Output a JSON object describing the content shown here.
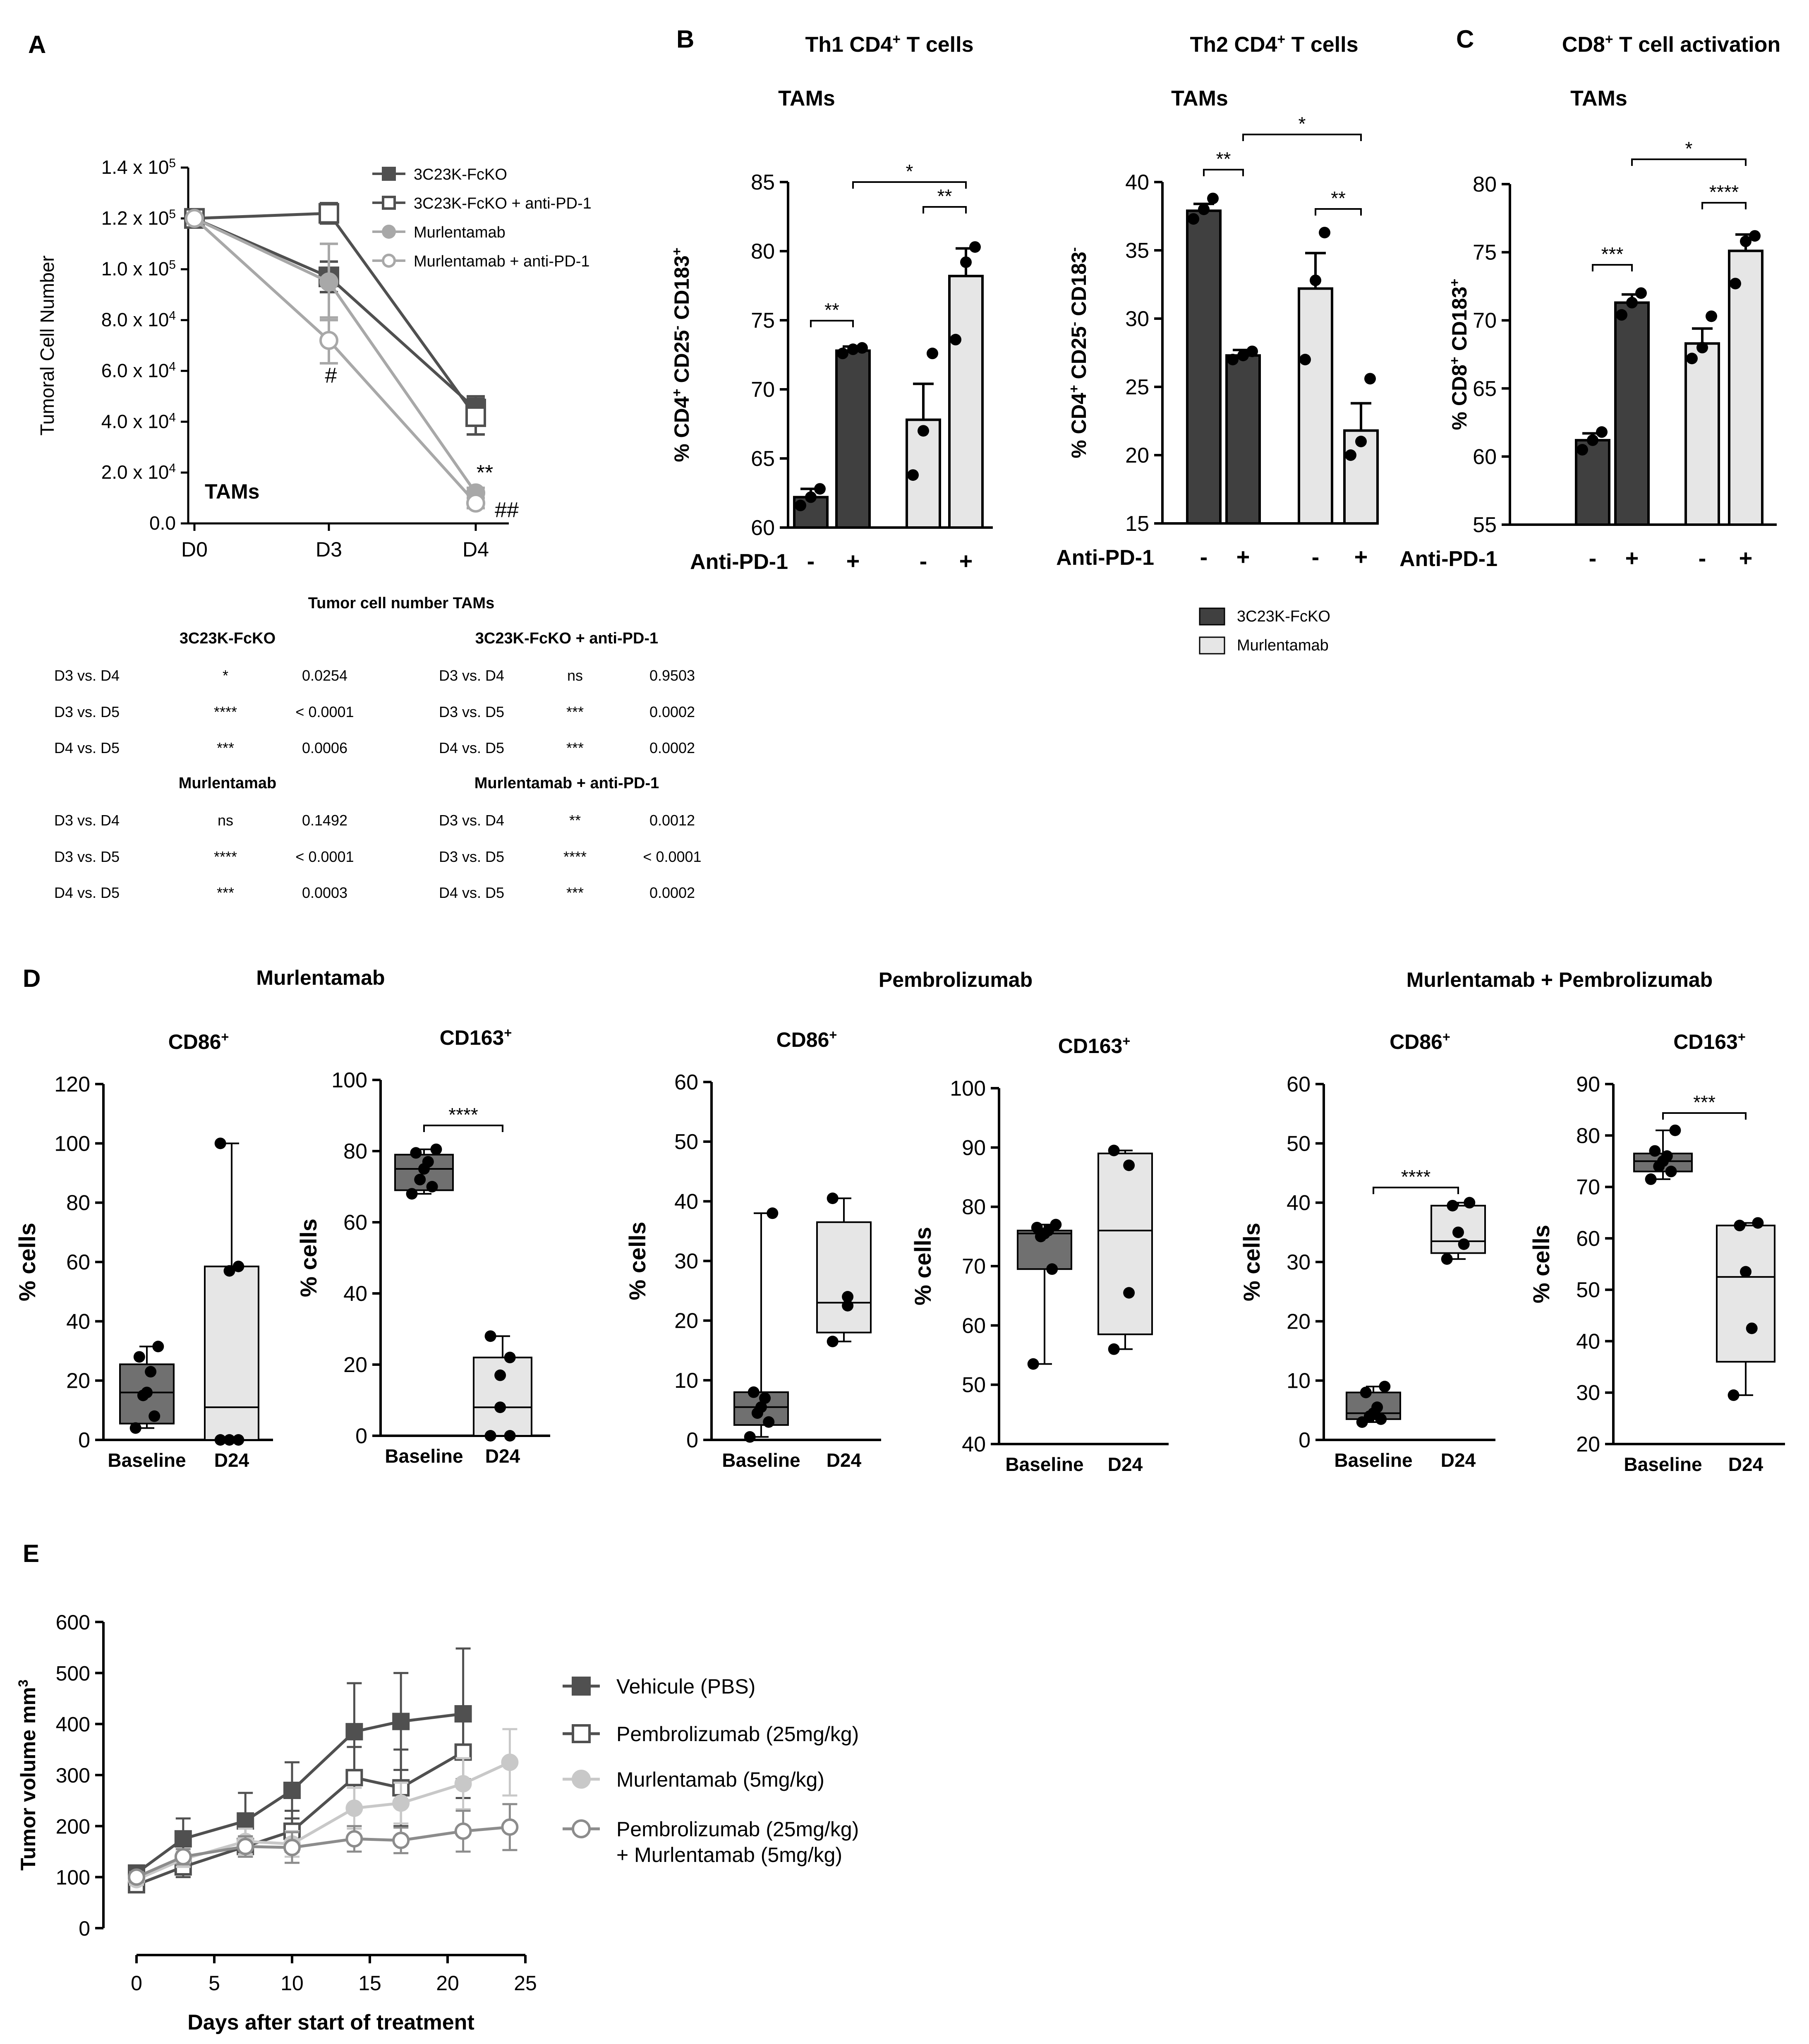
{
  "colors": {
    "dark": "#404040",
    "mid": "#707070",
    "light": "#e6e6e6",
    "grey1": "#8c8c8c",
    "grey2": "#a8a8a8",
    "grey3": "#c8c8c8"
  },
  "panel_labels": {
    "A": "A",
    "B": "B",
    "C": "C",
    "D": "D",
    "E": "E"
  },
  "chart_data": [
    {
      "id": "A",
      "type": "line",
      "ylabel": "Tumoral Cell Number",
      "annotation": "TAMs",
      "categories": [
        "D0",
        "D3",
        "D4"
      ],
      "ytick_labels": [
        "0.0",
        "2.0 x 10",
        "4.0 x 10",
        "6.0 x 10",
        "8.0 x 10",
        "1.0 x 10",
        "1.2 x 10",
        "1.4 x 10"
      ],
      "ytick_exps": [
        "",
        "4",
        "4",
        "4",
        "4",
        "5",
        "5",
        "5"
      ],
      "ylim": [
        0,
        140000
      ],
      "series": [
        {
          "name": "3C23K-FcKO",
          "values": [
            120000,
            97000,
            45000
          ],
          "err": [
            0,
            6000,
            5000
          ],
          "marker": "square-filled",
          "color": "#505050"
        },
        {
          "name": "3C23K-FcKO + anti-PD-1",
          "values": [
            120000,
            122000,
            42000
          ],
          "err": [
            0,
            4000,
            7000
          ],
          "marker": "square-open",
          "color": "#505050"
        },
        {
          "name": "Murlentamab",
          "values": [
            120000,
            95000,
            12000
          ],
          "err": [
            0,
            15000,
            2000
          ],
          "marker": "circle-filled",
          "color": "#a8a8a8"
        },
        {
          "name": "Murlentamab + anti-PD-1",
          "values": [
            120000,
            72000,
            8000
          ],
          "err": [
            0,
            9000,
            2000
          ],
          "marker": "circle-open",
          "color": "#a8a8a8"
        }
      ],
      "sig": {
        "d3": "#",
        "d4a": "**",
        "d4b": "##"
      }
    },
    {
      "id": "B1",
      "type": "bar",
      "title": "Th1 CD4",
      "title_sup": "+",
      "title_rest": " T cells",
      "subtitle": "TAMs",
      "ylabel_parts": [
        "% CD4",
        "+",
        " CD25",
        "-",
        " CD183",
        "+"
      ],
      "xlabel": "Anti-PD-1",
      "ticks": [
        "-",
        "+",
        "-",
        "+"
      ],
      "ylim": [
        60,
        85
      ],
      "yticks": [
        "60",
        "65",
        "70",
        "75",
        "80",
        "85"
      ],
      "values": [
        62.2,
        72.8,
        67.8,
        78.2
      ],
      "err": [
        0.6,
        0.3,
        2.6,
        2.0
      ],
      "points": [
        [
          61.6,
          62.2,
          62.8
        ],
        [
          72.6,
          72.9,
          73.0
        ],
        [
          63.8,
          67.0,
          72.6
        ],
        [
          73.6,
          79.2,
          80.3
        ]
      ],
      "sig": [
        {
          "a": 0,
          "b": 1,
          "label": "**"
        },
        {
          "a": 2,
          "b": 3,
          "label": "**"
        },
        {
          "a": 1,
          "b": 3,
          "label": "*"
        }
      ]
    },
    {
      "id": "B2",
      "type": "bar",
      "title": "Th2 CD4",
      "title_sup": "+",
      "title_rest": " T cells",
      "subtitle": "TAMs",
      "ylabel_parts": [
        "% CD4",
        "+",
        " CD25",
        "-",
        " CD183",
        "-"
      ],
      "xlabel": "Anti-PD-1",
      "ticks": [
        "-",
        "+",
        "-",
        "+"
      ],
      "ylim": [
        15,
        40
      ],
      "yticks": [
        "15",
        "20",
        "25",
        "30",
        "35",
        "40"
      ],
      "values": [
        37.9,
        27.3,
        32.2,
        21.8
      ],
      "err": [
        0.5,
        0.4,
        2.6,
        2.0
      ],
      "points": [
        [
          37.3,
          38.0,
          38.8
        ],
        [
          27.0,
          27.3,
          27.6
        ],
        [
          27.0,
          32.8,
          36.3
        ],
        [
          20.0,
          21.0,
          25.6
        ]
      ],
      "sig": [
        {
          "a": 0,
          "b": 1,
          "label": "**"
        },
        {
          "a": 2,
          "b": 3,
          "label": "**"
        },
        {
          "a": 1,
          "b": 3,
          "label": "*"
        }
      ]
    },
    {
      "id": "C",
      "type": "bar",
      "title": "CD8",
      "title_sup": "+",
      "title_rest": " T cell activation",
      "subtitle": "TAMs",
      "ylabel_parts": [
        "% CD8",
        "+",
        " CD183",
        "+"
      ],
      "xlabel": "Anti-PD-1",
      "ticks": [
        "-",
        "+",
        "-",
        "+"
      ],
      "ylim": [
        55,
        80
      ],
      "yticks": [
        "55",
        "60",
        "65",
        "70",
        "75",
        "80"
      ],
      "values": [
        61.2,
        71.3,
        68.3,
        75.1
      ],
      "err": [
        0.5,
        0.6,
        1.1,
        1.2
      ],
      "points": [
        [
          60.5,
          61.2,
          61.8
        ],
        [
          70.4,
          71.3,
          72.0
        ],
        [
          67.2,
          68.0,
          70.3
        ],
        [
          72.7,
          75.8,
          76.2
        ]
      ],
      "sig": [
        {
          "a": 0,
          "b": 1,
          "label": "***"
        },
        {
          "a": 2,
          "b": 3,
          "label": "****"
        },
        {
          "a": 1,
          "b": 3,
          "label": "*"
        }
      ]
    },
    {
      "id": "D-mur-cd86",
      "type": "box",
      "group": "Murlentamab",
      "title": "CD86",
      "title_sup": "+",
      "ylabel": "% cells",
      "ylim": [
        0,
        120
      ],
      "yticks": [
        "0",
        "20",
        "40",
        "60",
        "80",
        "100",
        "120"
      ],
      "categories": [
        "Baseline",
        "D24"
      ],
      "boxes": [
        {
          "min": 4,
          "q1": 5.5,
          "median": 16,
          "q3": 25.5,
          "max": 31.5,
          "points": [
            4,
            8,
            15,
            16,
            23,
            28,
            31.5
          ]
        },
        {
          "min": 0,
          "q1": 0,
          "median": 11,
          "q3": 58.5,
          "max": 100,
          "points": [
            0,
            0,
            0,
            57,
            58.5,
            100
          ]
        }
      ],
      "sig": ""
    },
    {
      "id": "D-mur-cd163",
      "type": "box",
      "group": "Murlentamab",
      "title": "CD163",
      "title_sup": "+",
      "ylabel": "% cells",
      "ylim": [
        0,
        100
      ],
      "yticks": [
        "0",
        "20",
        "40",
        "60",
        "80",
        "100"
      ],
      "categories": [
        "Baseline",
        "D24"
      ],
      "boxes": [
        {
          "min": 68,
          "q1": 69,
          "median": 75,
          "q3": 79,
          "max": 80.5,
          "points": [
            68,
            70,
            72,
            75,
            77,
            79.5,
            80.5
          ]
        },
        {
          "min": 0,
          "q1": 0,
          "median": 8,
          "q3": 22,
          "max": 28,
          "points": [
            0,
            0,
            8,
            17,
            22,
            28
          ]
        }
      ],
      "sig": "****"
    },
    {
      "id": "D-pem-cd86",
      "type": "box",
      "group": "Pembrolizumab",
      "title": "CD86",
      "title_sup": "+",
      "ylabel": "% cells",
      "ylim": [
        0,
        60
      ],
      "yticks": [
        "0",
        "10",
        "20",
        "30",
        "40",
        "50",
        "60"
      ],
      "categories": [
        "Baseline",
        "D24"
      ],
      "boxes": [
        {
          "min": 0.5,
          "q1": 2.5,
          "median": 5.5,
          "q3": 8,
          "max": 38,
          "points": [
            0.5,
            3,
            4.5,
            5.5,
            7,
            8,
            38
          ]
        },
        {
          "min": 16.5,
          "q1": 18,
          "median": 23,
          "q3": 36.5,
          "max": 40.5,
          "points": [
            16.5,
            22.5,
            24,
            40.5
          ]
        }
      ],
      "sig": ""
    },
    {
      "id": "D-pem-cd163",
      "type": "box",
      "group": "Pembrolizumab",
      "title": "CD163",
      "title_sup": "+",
      "ylabel": "% cells",
      "ylim": [
        40,
        100
      ],
      "yticks": [
        "40",
        "50",
        "60",
        "70",
        "80",
        "90",
        "100"
      ],
      "categories": [
        "Baseline",
        "D24"
      ],
      "boxes": [
        {
          "min": 53.5,
          "q1": 69.5,
          "median": 75.5,
          "q3": 76,
          "max": 77,
          "points": [
            53.5,
            69.5,
            75,
            75.5,
            76,
            76.5,
            77
          ]
        },
        {
          "min": 56,
          "q1": 58.5,
          "median": 76,
          "q3": 89,
          "max": 89.5,
          "points": [
            56,
            65.5,
            87,
            89.5
          ]
        }
      ],
      "sig": ""
    },
    {
      "id": "D-com-cd86",
      "type": "box",
      "group": "Murlentamab + Pembrolizumab",
      "title": "CD86",
      "title_sup": "+",
      "ylabel": "% cells",
      "ylim": [
        0,
        60
      ],
      "yticks": [
        "0",
        "10",
        "20",
        "30",
        "40",
        "50",
        "60"
      ],
      "categories": [
        "Baseline",
        "D24"
      ],
      "boxes": [
        {
          "min": 3,
          "q1": 3.5,
          "median": 4.5,
          "q3": 8,
          "max": 9,
          "points": [
            3,
            3.5,
            4,
            4.5,
            5.5,
            8,
            9
          ]
        },
        {
          "min": 30.5,
          "q1": 31.5,
          "median": 33.5,
          "q3": 39.5,
          "max": 40,
          "points": [
            30.5,
            33,
            35,
            39.5,
            40
          ]
        }
      ],
      "sig": "****"
    },
    {
      "id": "D-com-cd163",
      "type": "box",
      "group": "Murlentamab + Pembrolizumab",
      "title": "CD163",
      "title_sup": "+",
      "ylabel": "% cells",
      "ylim": [
        20,
        90
      ],
      "yticks": [
        "20",
        "30",
        "40",
        "50",
        "60",
        "70",
        "80",
        "90"
      ],
      "categories": [
        "Baseline",
        "D24"
      ],
      "boxes": [
        {
          "min": 71.5,
          "q1": 73,
          "median": 75,
          "q3": 76.5,
          "max": 81,
          "points": [
            71.5,
            73,
            74,
            75,
            76,
            77,
            81
          ]
        },
        {
          "min": 29.5,
          "q1": 36,
          "median": 52.5,
          "q3": 62.5,
          "max": 63,
          "points": [
            29.5,
            42.5,
            53.5,
            62.5,
            63
          ]
        }
      ],
      "sig": "***"
    },
    {
      "id": "E",
      "type": "line",
      "xlabel": "Days after start of treatment",
      "ylabel": "Tumor volume mm",
      "ylabel_sup": "3",
      "xlim": [
        0,
        25
      ],
      "ylim": [
        0,
        600
      ],
      "xticks": [
        "0",
        "5",
        "10",
        "15",
        "20",
        "25"
      ],
      "yticks": [
        "0",
        "100",
        "200",
        "300",
        "400",
        "500",
        "600"
      ],
      "series": [
        {
          "name": "Vehicule (PBS)",
          "x": [
            0,
            3,
            7,
            10,
            14,
            17,
            21
          ],
          "y": [
            108,
            175,
            210,
            270,
            385,
            405,
            420
          ],
          "err": [
            10,
            40,
            55,
            55,
            95,
            95,
            128
          ],
          "marker": "square-filled",
          "color": "#505050"
        },
        {
          "name": "Pembrolizumab (25mg/kg)",
          "x": [
            0,
            3,
            7,
            10,
            14,
            17,
            21
          ],
          "y": [
            85,
            120,
            160,
            190,
            295,
            275,
            345
          ],
          "err": [
            10,
            20,
            20,
            40,
            60,
            75,
            90
          ],
          "marker": "square-open",
          "color": "#505050"
        },
        {
          "name": "Murlentamab (5mg/kg)",
          "x": [
            0,
            3,
            7,
            10,
            14,
            17,
            21,
            24
          ],
          "y": [
            95,
            135,
            170,
            165,
            235,
            245,
            283,
            325
          ],
          "err": [
            10,
            15,
            25,
            25,
            40,
            40,
            50,
            65
          ],
          "marker": "circle-filled",
          "color": "#c8c8c8"
        },
        {
          "name": "Pembrolizumab (25mg/kg)",
          "name2": "+ Murlentamab (5mg/kg)",
          "x": [
            0,
            3,
            7,
            10,
            14,
            17,
            21,
            24
          ],
          "y": [
            100,
            140,
            160,
            158,
            175,
            172,
            190,
            198
          ],
          "err": [
            10,
            15,
            20,
            30,
            25,
            25,
            40,
            45
          ],
          "marker": "circle-open",
          "color": "#8c8c8c"
        }
      ]
    }
  ],
  "legend_B": {
    "items": [
      "3C23K-FcKO",
      "Murlentamab"
    ]
  },
  "stats_table": {
    "title": "Tumor cell number TAMs",
    "groups": [
      {
        "name": "3C23K-FcKO",
        "rows": [
          [
            "D3 vs. D4",
            "*",
            "0.0254"
          ],
          [
            "D3 vs. D5",
            "****",
            "< 0.0001"
          ],
          [
            "D4 vs. D5",
            "***",
            "0.0006"
          ]
        ]
      },
      {
        "name": "3C23K-FcKO + anti-PD-1",
        "rows": [
          [
            "D3 vs. D4",
            "ns",
            "0.9503"
          ],
          [
            "D3 vs. D5",
            "***",
            "0.0002"
          ],
          [
            "D4 vs. D5",
            "***",
            "0.0002"
          ]
        ]
      },
      {
        "name": "Murlentamab",
        "rows": [
          [
            "D3 vs. D4",
            "ns",
            "0.1492"
          ],
          [
            "D3 vs. D5",
            "****",
            "< 0.0001"
          ],
          [
            "D4 vs. D5",
            "***",
            "0.0003"
          ]
        ]
      },
      {
        "name": "Murlentamab + anti-PD-1",
        "rows": [
          [
            "D3 vs. D4",
            "**",
            "0.0012"
          ],
          [
            "D3 vs. D5",
            "****",
            "< 0.0001"
          ],
          [
            "D4 vs. D5",
            "***",
            "0.0002"
          ]
        ]
      }
    ]
  },
  "D_groups": [
    "Murlentamab",
    "Pembrolizumab",
    "Murlentamab + Pembrolizumab"
  ]
}
